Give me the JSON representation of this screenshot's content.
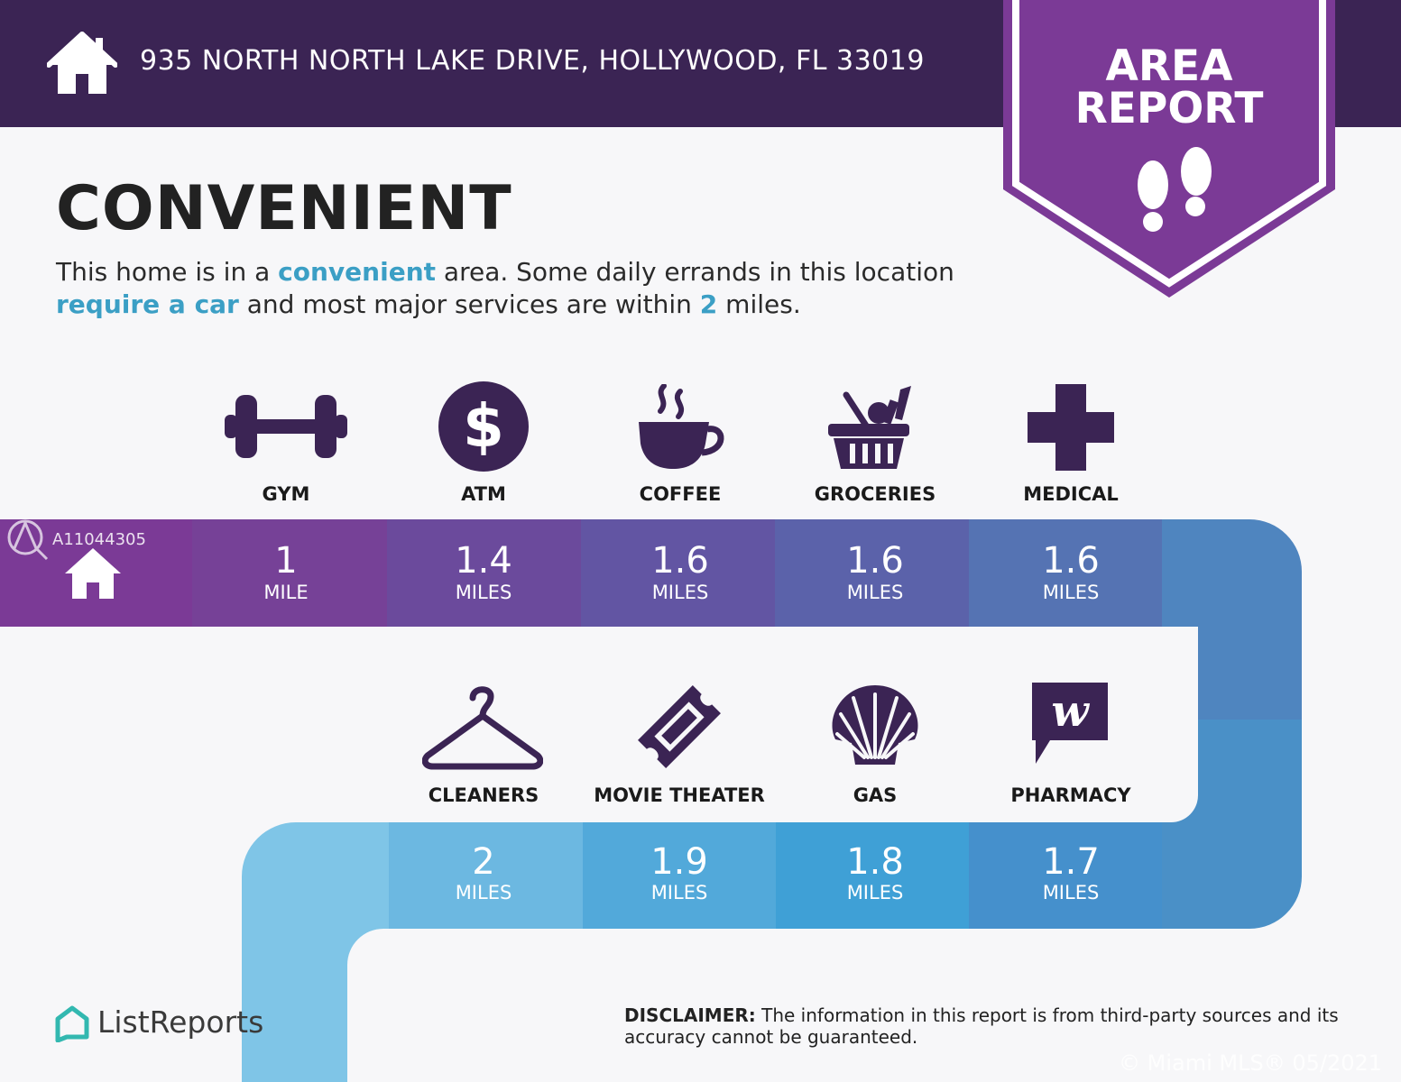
{
  "header": {
    "address": "935 NORTH NORTH LAKE DRIVE, HOLLYWOOD, FL 33019",
    "badge_line1": "AREA",
    "badge_line2": "REPORT",
    "house_icon": "house-icon",
    "badge_icon": "footprints-icon"
  },
  "summary": {
    "title": "CONVENIENT",
    "sentence_parts": [
      "This home is in a ",
      "convenient",
      " area. Some daily errands in this location ",
      "require a car",
      " and most major services are within ",
      "2",
      " miles."
    ]
  },
  "amenities": [
    {
      "label": "GYM",
      "value": "1",
      "unit": "MILE",
      "icon": "dumbbell-icon"
    },
    {
      "label": "ATM",
      "value": "1.4",
      "unit": "MILES",
      "icon": "dollar-icon"
    },
    {
      "label": "COFFEE",
      "value": "1.6",
      "unit": "MILES",
      "icon": "coffee-cup-icon"
    },
    {
      "label": "GROCERIES",
      "value": "1.6",
      "unit": "MILES",
      "icon": "grocery-basket-icon"
    },
    {
      "label": "MEDICAL",
      "value": "1.6",
      "unit": "MILES",
      "icon": "medical-cross-icon"
    },
    {
      "label": "CLEANERS",
      "value": "2",
      "unit": "MILES",
      "icon": "hanger-icon"
    },
    {
      "label": "MOVIE THEATER",
      "value": "1.9",
      "unit": "MILES",
      "icon": "ticket-icon"
    },
    {
      "label": "GAS",
      "value": "1.8",
      "unit": "MILES",
      "icon": "shell-icon"
    },
    {
      "label": "PHARMACY",
      "value": "1.7",
      "unit": "MILES",
      "icon": "pharmacy-w-icon"
    }
  ],
  "watermark": {
    "listing_id": "A11044305",
    "copyright": "© Miami MLS® 05/2021"
  },
  "footer": {
    "brand": "ListReports",
    "disclaimer_label": "DISCLAIMER:",
    "disclaimer_text": " The information in this report is from third-party sources and its accuracy cannot be guaranteed."
  },
  "colors": {
    "header": "#3b2454",
    "badge": "#7b3a96",
    "highlight": "#3b9fc5"
  }
}
